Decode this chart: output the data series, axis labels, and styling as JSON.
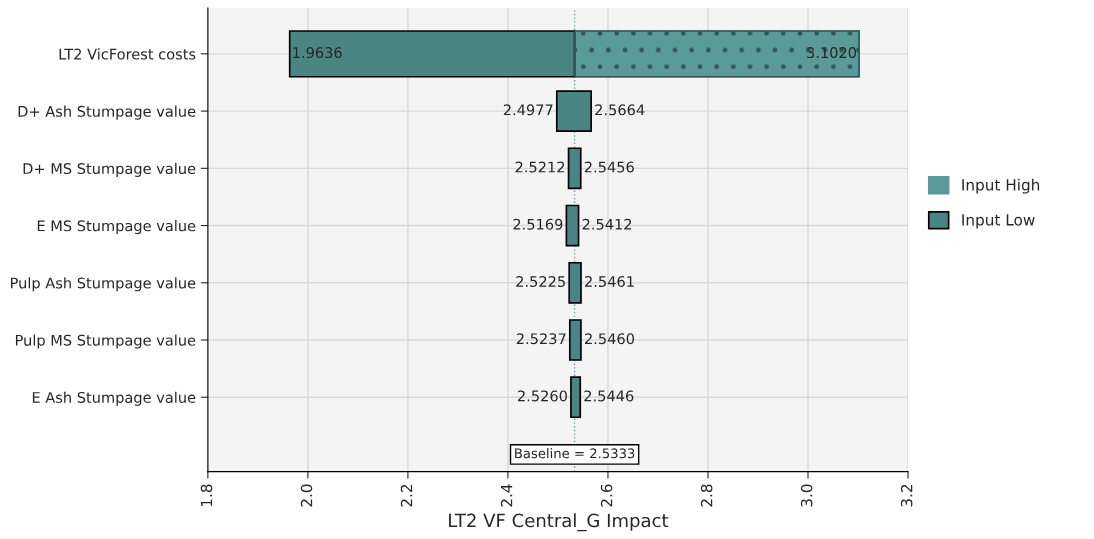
{
  "chart_data": {
    "type": "bar",
    "orientation": "horizontal",
    "xlabel": "LT2 VF Central_G Impact",
    "categories": [
      "LT2 VicForest costs",
      "D+ Ash Stumpage value",
      "D+ MS Stumpage value",
      "E MS Stumpage value",
      "Pulp Ash Stumpage value",
      "Pulp MS Stumpage value",
      "E Ash Stumpage value"
    ],
    "series": [
      {
        "name": "Input High",
        "color": "#5a9a98",
        "base": [
          2.5333,
          null,
          null,
          null,
          null,
          null,
          null
        ],
        "values": [
          0.5687,
          null,
          null,
          null,
          null,
          null,
          null
        ]
      },
      {
        "name": "Input Low",
        "color": "#4a8584",
        "base": [
          1.9636,
          2.4977,
          2.5212,
          2.5169,
          2.5225,
          2.5237,
          2.526
        ],
        "values": [
          0.5697,
          0.0687,
          0.0244,
          0.0243,
          0.0236,
          0.0223,
          0.0186
        ]
      }
    ],
    "annotations": [
      {
        "text": "1.9636",
        "x": 1.9636,
        "y": "LT2 VicForest costs"
      },
      {
        "text": "3.1020",
        "x": 3.102,
        "y": "LT2 VicForest costs"
      },
      {
        "text": "2.4977",
        "x": 2.4977,
        "y": "D+ Ash Stumpage value"
      },
      {
        "text": "2.5664",
        "x": 2.5664,
        "y": "D+ Ash Stumpage value"
      },
      {
        "text": "2.5212",
        "x": 2.5212,
        "y": "D+ MS Stumpage value"
      },
      {
        "text": "2.5456",
        "x": 2.5456,
        "y": "D+ MS Stumpage value"
      },
      {
        "text": "2.5169",
        "x": 2.5169,
        "y": "E MS Stumpage value"
      },
      {
        "text": "2.5412",
        "x": 2.5412,
        "y": "E MS Stumpage value"
      },
      {
        "text": "2.5225",
        "x": 2.5225,
        "y": "Pulp Ash Stumpage value"
      },
      {
        "text": "2.5461",
        "x": 2.5461,
        "y": "Pulp Ash Stumpage value"
      },
      {
        "text": "2.5237",
        "x": 2.5237,
        "y": "Pulp MS Stumpage value"
      },
      {
        "text": "2.5460",
        "x": 2.546,
        "y": "Pulp MS Stumpage value"
      },
      {
        "text": "2.5260",
        "x": 2.526,
        "y": "E Ash Stumpage value"
      },
      {
        "text": "2.5446",
        "x": 2.5446,
        "y": "E Ash Stumpage value"
      }
    ],
    "ref_lines": [
      {
        "axis": "x",
        "value": 2.5333,
        "label": "Baseline = 2.5333",
        "color": "#5aaab0",
        "line_style": "dotted"
      }
    ],
    "xlim": [
      1.8,
      3.2
    ],
    "xticks": [
      1.8,
      {
        "value": 2,
        "label": "2.0"
      },
      2.2,
      2.4,
      2.6,
      2.8,
      {
        "value": 3,
        "label": "3.0"
      },
      3.2
    ],
    "grid": true,
    "legend": "right"
  }
}
